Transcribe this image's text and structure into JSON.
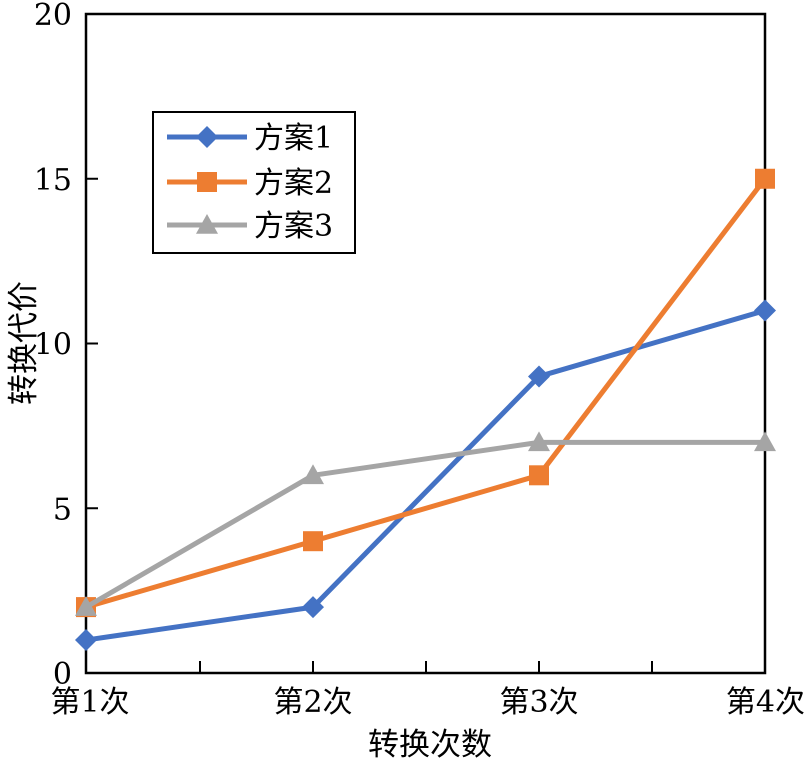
{
  "chart_data": {
    "type": "line",
    "title": "",
    "xlabel": "转换次数",
    "ylabel": "转换代价",
    "categories": [
      "第1次",
      "第2次",
      "第3次",
      "第4次"
    ],
    "ylim": [
      0,
      20
    ],
    "yticks": [
      0,
      5,
      10,
      15,
      20
    ],
    "legend_position": "upper-left",
    "series": [
      {
        "name": "方案1",
        "values": [
          1,
          2,
          9,
          11
        ],
        "color": "#4472C4",
        "marker": "diamond"
      },
      {
        "name": "方案2",
        "values": [
          2,
          4,
          6,
          15
        ],
        "color": "#ED7D31",
        "marker": "square"
      },
      {
        "name": "方案3",
        "values": [
          2,
          6,
          7,
          7
        ],
        "color": "#A5A5A5",
        "marker": "triangle"
      }
    ]
  }
}
